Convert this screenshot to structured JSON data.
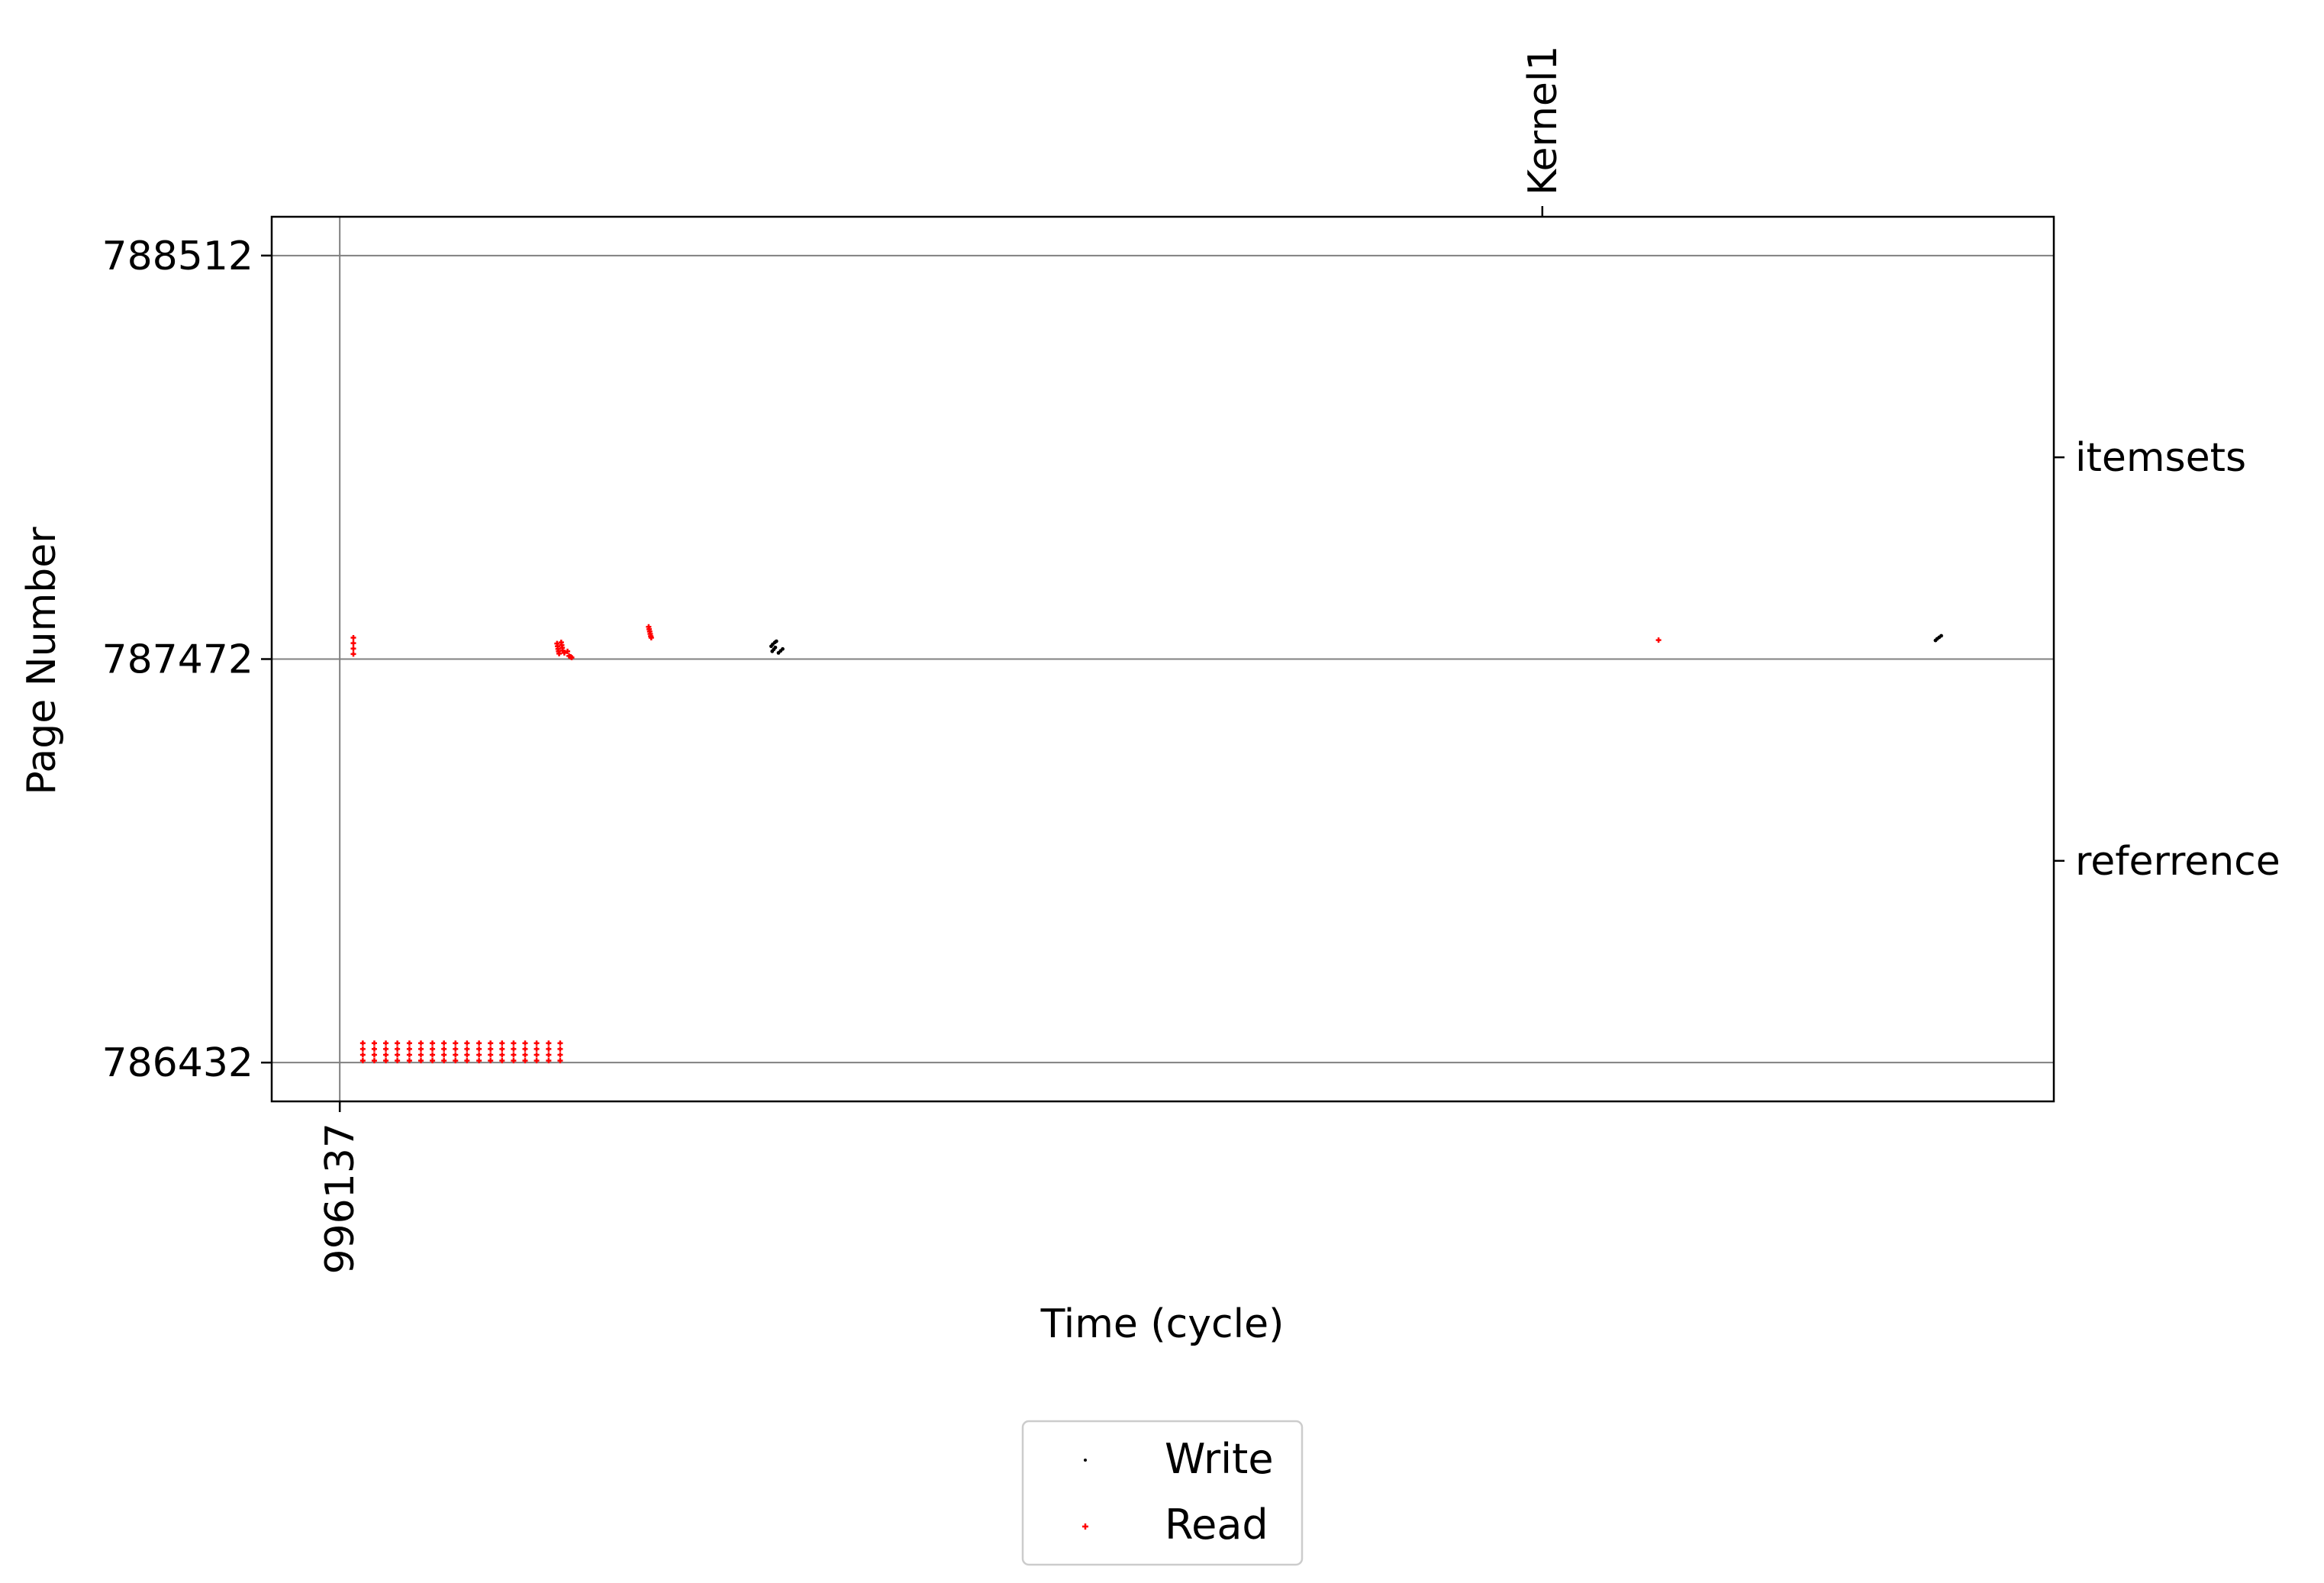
{
  "chart_data": {
    "type": "scatter",
    "title": "",
    "xlabel": "Time (cycle)",
    "ylabel": "Page Number",
    "xlim": [
      996007,
      999411
    ],
    "ylim": [
      786332,
      788612
    ],
    "x_ticks": [
      996137
    ],
    "x_tick_labels": [
      "996137"
    ],
    "y_ticks": [
      786432,
      787472,
      788512
    ],
    "y_tick_labels": [
      "786432",
      "787472",
      "788512"
    ],
    "top_axis_ticks": [
      {
        "x": 998434,
        "label": "Kernel1"
      }
    ],
    "right_axis_ticks": [
      {
        "y": 787992,
        "label": "itemsets"
      },
      {
        "y": 786952,
        "label": "referrence"
      }
    ],
    "grid": true,
    "legend": {
      "placement": "bottom-center",
      "entries": [
        {
          "label": "Write",
          "color": "#000000",
          "marker": "point"
        },
        {
          "label": "Read",
          "color": "#ff0000",
          "marker": "plus"
        }
      ]
    },
    "series": [
      {
        "name": "Write",
        "color": "#000000",
        "points": [
          [
            996961,
            787505
          ],
          [
            996964,
            787510
          ],
          [
            996968,
            787515
          ],
          [
            996971,
            787518
          ],
          [
            996963,
            787492
          ],
          [
            996966,
            787497
          ],
          [
            996969,
            787502
          ],
          [
            996975,
            787488
          ],
          [
            996979,
            787493
          ],
          [
            996983,
            787498
          ],
          [
            999185,
            787520
          ],
          [
            999188,
            787524
          ],
          [
            999192,
            787528
          ],
          [
            999196,
            787532
          ]
        ]
      },
      {
        "name": "Read",
        "color": "#ff0000",
        "points": [
          [
            996163,
            787527
          ],
          [
            996163,
            787513
          ],
          [
            996163,
            787499
          ],
          [
            996163,
            787485
          ],
          [
            996181,
            786482
          ],
          [
            996181,
            786467
          ],
          [
            996181,
            786452
          ],
          [
            996181,
            786437
          ],
          [
            996203,
            786482
          ],
          [
            996203,
            786467
          ],
          [
            996203,
            786452
          ],
          [
            996203,
            786437
          ],
          [
            996225,
            786482
          ],
          [
            996225,
            786467
          ],
          [
            996225,
            786452
          ],
          [
            996225,
            786437
          ],
          [
            996247,
            786482
          ],
          [
            996247,
            786467
          ],
          [
            996247,
            786452
          ],
          [
            996247,
            786437
          ],
          [
            996270,
            786482
          ],
          [
            996270,
            786467
          ],
          [
            996270,
            786452
          ],
          [
            996270,
            786437
          ],
          [
            996292,
            786482
          ],
          [
            996292,
            786467
          ],
          [
            996292,
            786452
          ],
          [
            996292,
            786437
          ],
          [
            996314,
            786482
          ],
          [
            996314,
            786467
          ],
          [
            996314,
            786452
          ],
          [
            996314,
            786437
          ],
          [
            996336,
            786482
          ],
          [
            996336,
            786467
          ],
          [
            996336,
            786452
          ],
          [
            996336,
            786437
          ],
          [
            996358,
            786482
          ],
          [
            996358,
            786467
          ],
          [
            996358,
            786452
          ],
          [
            996358,
            786437
          ],
          [
            996380,
            786482
          ],
          [
            996380,
            786467
          ],
          [
            996380,
            786452
          ],
          [
            996380,
            786437
          ],
          [
            996403,
            786482
          ],
          [
            996403,
            786467
          ],
          [
            996403,
            786452
          ],
          [
            996403,
            786437
          ],
          [
            996425,
            786482
          ],
          [
            996425,
            786467
          ],
          [
            996425,
            786452
          ],
          [
            996425,
            786437
          ],
          [
            996447,
            786482
          ],
          [
            996447,
            786467
          ],
          [
            996447,
            786452
          ],
          [
            996447,
            786437
          ],
          [
            996469,
            786482
          ],
          [
            996469,
            786467
          ],
          [
            996469,
            786452
          ],
          [
            996469,
            786437
          ],
          [
            996491,
            786482
          ],
          [
            996491,
            786467
          ],
          [
            996491,
            786452
          ],
          [
            996491,
            786437
          ],
          [
            996513,
            786482
          ],
          [
            996513,
            786467
          ],
          [
            996513,
            786452
          ],
          [
            996513,
            786437
          ],
          [
            996536,
            786482
          ],
          [
            996536,
            786467
          ],
          [
            996536,
            786452
          ],
          [
            996536,
            786437
          ],
          [
            996558,
            786482
          ],
          [
            996558,
            786467
          ],
          [
            996558,
            786452
          ],
          [
            996558,
            786437
          ],
          [
            996552,
            787512
          ],
          [
            996553,
            787505
          ],
          [
            996554,
            787498
          ],
          [
            996555,
            787492
          ],
          [
            996560,
            787515
          ],
          [
            996561,
            787508
          ],
          [
            996562,
            787501
          ],
          [
            996563,
            787494
          ],
          [
            996556,
            787486
          ],
          [
            996566,
            787488
          ],
          [
            996572,
            787492
          ],
          [
            996578,
            787478
          ],
          [
            996727,
            787555
          ],
          [
            996728,
            787549
          ],
          [
            996729,
            787543
          ],
          [
            996730,
            787537
          ],
          [
            996731,
            787531
          ],
          [
            996732,
            787527
          ],
          [
            998656,
            787521
          ],
          [
            996575,
            787480
          ],
          [
            996580,
            787476
          ]
        ]
      }
    ]
  }
}
